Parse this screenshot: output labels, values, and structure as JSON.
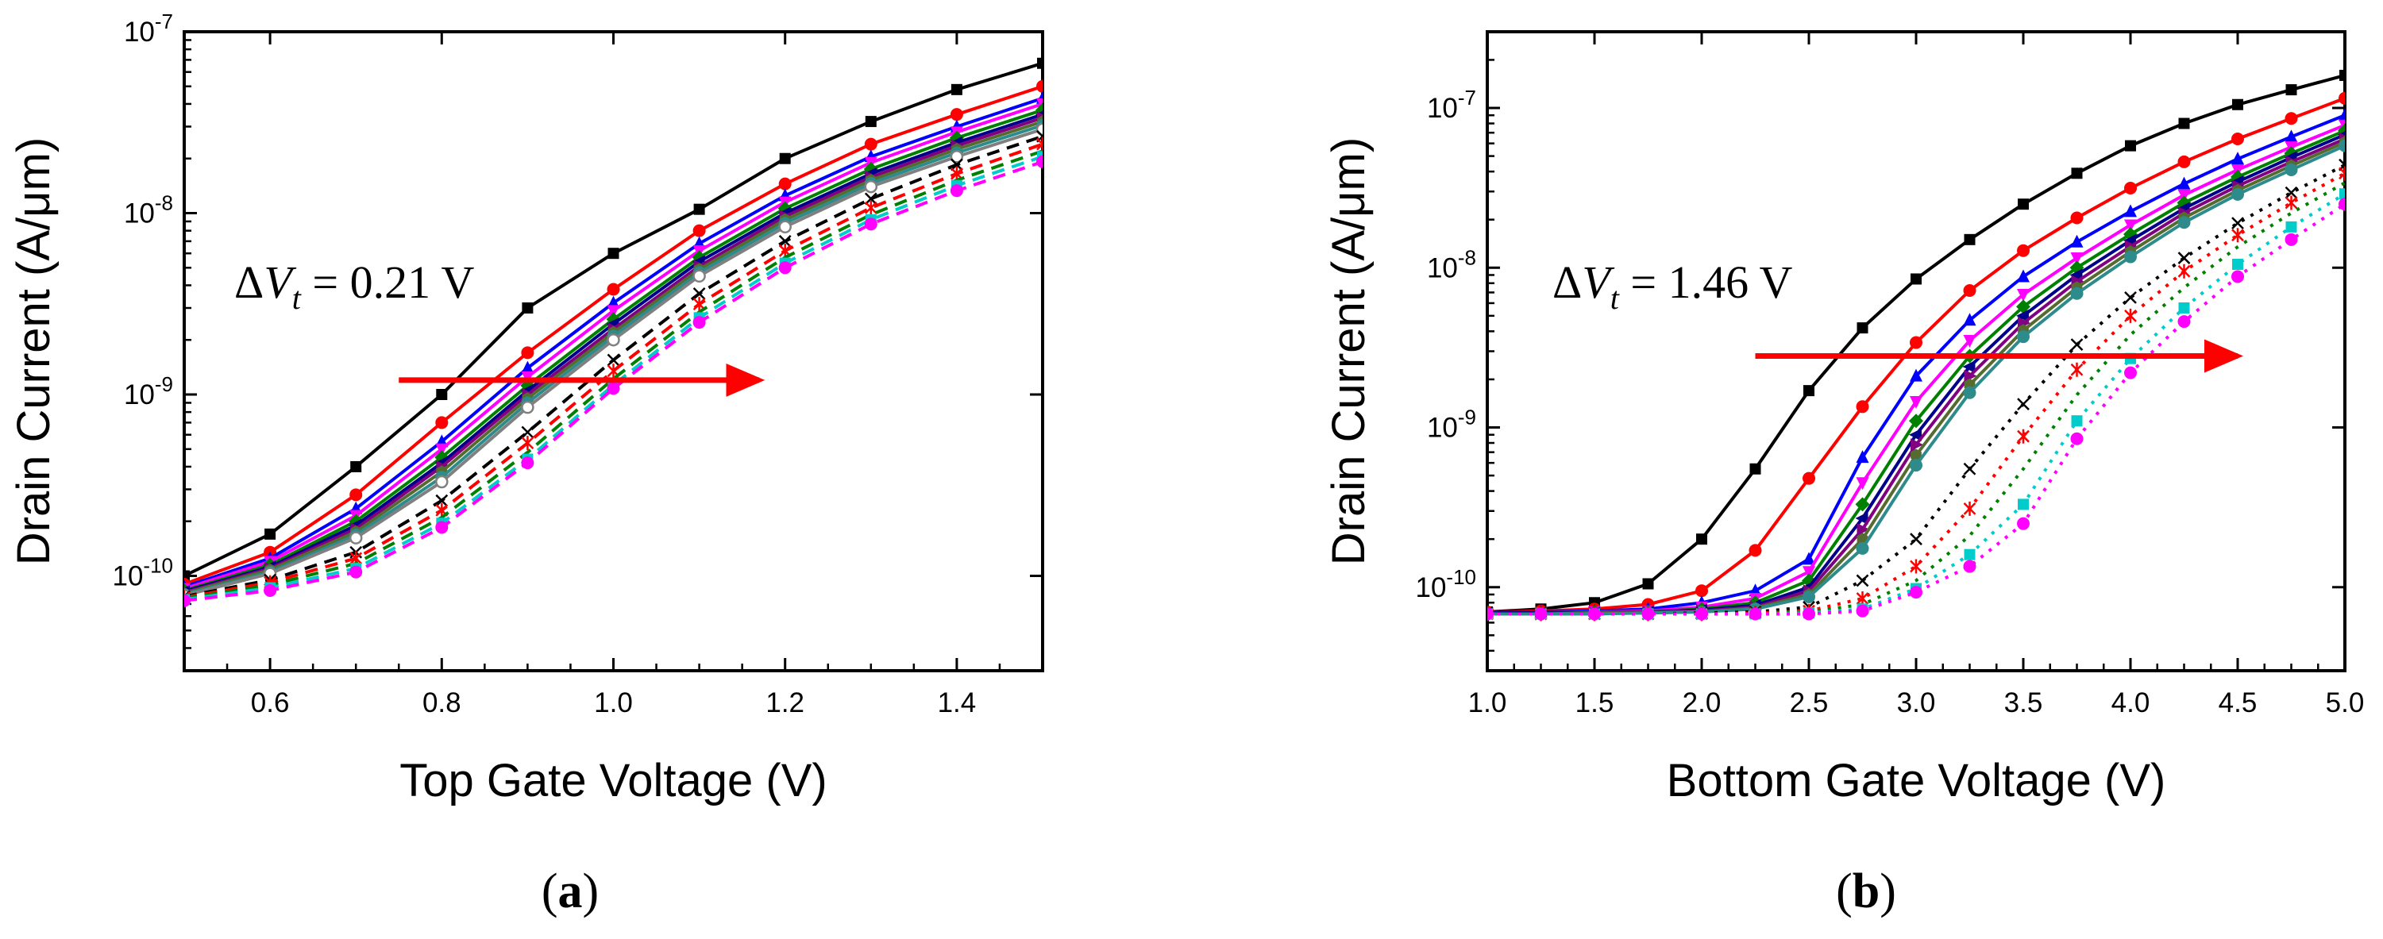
{
  "chart_data": [
    {
      "type": "line",
      "panel_label": "a",
      "xlabel": "Top Gate Voltage (V)",
      "ylabel": "Drain Current (A/μm)",
      "xlim": [
        0.5,
        1.5
      ],
      "ylim": [
        3e-11,
        1e-07
      ],
      "yscale": "log",
      "xticks": [
        "0.6",
        "0.8",
        "1.0",
        "1.2",
        "1.4"
      ],
      "yticks": [
        {
          "base": "10",
          "exp": "-10"
        },
        {
          "base": "10",
          "exp": "-9"
        },
        {
          "base": "10",
          "exp": "-8"
        },
        {
          "base": "10",
          "exp": "-7"
        }
      ],
      "annotation": {
        "delta": "Δ",
        "symbol": "V",
        "subscript": "t",
        "rest": " = 0.21 V"
      },
      "arrow": {
        "from_x": 0.75,
        "to_x": 1.17,
        "y": 1.2e-09,
        "color": "#ff0000"
      },
      "x": [
        0.5,
        0.6,
        0.7,
        0.8,
        0.9,
        1.0,
        1.1,
        1.2,
        1.3,
        1.4,
        1.5
      ],
      "series": [
        {
          "color": "#000000",
          "marker": "square",
          "style": "solid",
          "values": [
            1e-10,
            1.7e-10,
            4e-10,
            1e-09,
            3e-09,
            6e-09,
            1.05e-08,
            2e-08,
            3.2e-08,
            4.8e-08,
            6.7e-08
          ]
        },
        {
          "color": "#ff0000",
          "marker": "circle",
          "style": "solid",
          "values": [
            9e-11,
            1.35e-10,
            2.8e-10,
            7e-10,
            1.7e-09,
            3.8e-09,
            8e-09,
            1.45e-08,
            2.4e-08,
            3.5e-08,
            5e-08
          ]
        },
        {
          "color": "#0000ff",
          "marker": "triangle-up",
          "style": "solid",
          "values": [
            8.7e-11,
            1.25e-10,
            2.35e-10,
            5.5e-10,
            1.4e-09,
            3.2e-09,
            6.8e-09,
            1.25e-08,
            2.05e-08,
            3e-08,
            4.3e-08
          ]
        },
        {
          "color": "#ff00ff",
          "marker": "triangle-down",
          "style": "solid",
          "values": [
            8.5e-11,
            1.2e-10,
            2.15e-10,
            5e-10,
            1.25e-09,
            2.9e-09,
            6.2e-09,
            1.15e-08,
            1.9e-08,
            2.8e-08,
            4e-08
          ]
        },
        {
          "color": "#008000",
          "marker": "diamond",
          "style": "solid",
          "values": [
            8.3e-11,
            1.15e-10,
            2e-10,
            4.5e-10,
            1.12e-09,
            2.6e-09,
            5.7e-09,
            1.06e-08,
            1.75e-08,
            2.6e-08,
            3.7e-08
          ]
        },
        {
          "color": "#00008b",
          "marker": "triangle-left",
          "style": "solid",
          "values": [
            8.2e-11,
            1.12e-10,
            1.9e-10,
            4.2e-10,
            1.05e-09,
            2.45e-09,
            5.4e-09,
            1e-08,
            1.65e-08,
            2.45e-08,
            3.5e-08
          ]
        },
        {
          "color": "#800080",
          "marker": "triangle-right",
          "style": "solid",
          "values": [
            8.1e-11,
            1.1e-10,
            1.82e-10,
            4e-10,
            1e-09,
            2.3e-09,
            5.1e-09,
            9.6e-09,
            1.58e-08,
            2.35e-08,
            3.35e-08
          ]
        },
        {
          "color": "#556b2f",
          "marker": "hexagon",
          "style": "solid",
          "values": [
            8e-11,
            1.08e-10,
            1.75e-10,
            3.75e-10,
            9.5e-10,
            2.2e-09,
            4.9e-09,
            9.2e-09,
            1.52e-08,
            2.25e-08,
            3.2e-08
          ]
        },
        {
          "color": "#2e8b8b",
          "marker": "circle",
          "style": "solid",
          "values": [
            7.9e-11,
            1.05e-10,
            1.68e-10,
            3.5e-10,
            9e-10,
            2.1e-09,
            4.7e-09,
            8.8e-09,
            1.46e-08,
            2.15e-08,
            3.05e-08
          ]
        },
        {
          "color": "#808080",
          "marker": "circle-open",
          "style": "solid",
          "values": [
            7.8e-11,
            1.03e-10,
            1.62e-10,
            3.3e-10,
            8.5e-10,
            2e-09,
            4.5e-09,
            8.4e-09,
            1.4e-08,
            2.05e-08,
            2.9e-08
          ]
        },
        {
          "color": "#000000",
          "marker": "x",
          "style": "dashed",
          "values": [
            7.7e-11,
            9.5e-11,
            1.35e-10,
            2.6e-10,
            6.2e-10,
            1.55e-09,
            3.6e-09,
            7e-09,
            1.2e-08,
            1.85e-08,
            2.65e-08
          ]
        },
        {
          "color": "#ff0000",
          "marker": "star",
          "style": "dashed",
          "values": [
            7.6e-11,
            9.2e-11,
            1.25e-10,
            2.3e-10,
            5.4e-10,
            1.35e-09,
            3.15e-09,
            6.2e-09,
            1.07e-08,
            1.65e-08,
            2.4e-08
          ]
        },
        {
          "color": "#008000",
          "marker": "none",
          "style": "dashed",
          "values": [
            7.5e-11,
            8.9e-11,
            1.17e-10,
            2.1e-10,
            4.8e-10,
            1.22e-09,
            2.85e-09,
            5.7e-09,
            9.8e-09,
            1.52e-08,
            2.2e-08
          ]
        },
        {
          "color": "#00cccc",
          "marker": "square",
          "style": "dashed",
          "values": [
            7.4e-11,
            8.6e-11,
            1.1e-10,
            1.95e-10,
            4.4e-10,
            1.13e-09,
            2.65e-09,
            5.3e-09,
            9.2e-09,
            1.42e-08,
            2.05e-08
          ]
        },
        {
          "color": "#ff00ff",
          "marker": "circle",
          "style": "dashed",
          "values": [
            7.3e-11,
            8.3e-11,
            1.05e-10,
            1.85e-10,
            4.2e-10,
            1.08e-09,
            2.5e-09,
            5e-09,
            8.7e-09,
            1.33e-08,
            1.92e-08
          ]
        }
      ]
    },
    {
      "type": "line",
      "panel_label": "b",
      "xlabel": "Bottom Gate Voltage (V)",
      "ylabel": "Drain Current (A/μm)",
      "xlim": [
        1.0,
        5.0
      ],
      "ylim": [
        3e-11,
        3e-07
      ],
      "yscale": "log",
      "xticks": [
        "1.0",
        "1.5",
        "2.0",
        "2.5",
        "3.0",
        "3.5",
        "4.0",
        "4.5",
        "5.0"
      ],
      "yticks": [
        {
          "base": "10",
          "exp": "-10"
        },
        {
          "base": "10",
          "exp": "-9"
        },
        {
          "base": "10",
          "exp": "-8"
        },
        {
          "base": "10",
          "exp": "-7"
        }
      ],
      "annotation": {
        "delta": "Δ",
        "symbol": "V",
        "subscript": "t",
        "rest": " = 1.46 V"
      },
      "arrow": {
        "from_x": 2.25,
        "to_x": 4.5,
        "y": 2.8e-09,
        "color": "#ff0000"
      },
      "x": [
        1.0,
        1.25,
        1.5,
        1.75,
        2.0,
        2.25,
        2.5,
        2.75,
        3.0,
        3.25,
        3.5,
        3.75,
        4.0,
        4.25,
        4.5,
        4.75,
        5.0
      ],
      "series": [
        {
          "color": "#000000",
          "marker": "square",
          "style": "solid",
          "values": [
            7e-11,
            7.3e-11,
            8e-11,
            1.05e-10,
            2e-10,
            5.5e-10,
            1.7e-09,
            4.2e-09,
            8.5e-09,
            1.5e-08,
            2.5e-08,
            3.9e-08,
            5.8e-08,
            8e-08,
            1.05e-07,
            1.3e-07,
            1.6e-07
          ]
        },
        {
          "color": "#ff0000",
          "marker": "circle",
          "style": "solid",
          "values": [
            7e-11,
            7.1e-11,
            7.3e-11,
            7.8e-11,
            9.5e-11,
            1.7e-10,
            4.8e-10,
            1.35e-09,
            3.4e-09,
            7.2e-09,
            1.28e-08,
            2.05e-08,
            3.15e-08,
            4.6e-08,
            6.4e-08,
            8.6e-08,
            1.15e-07
          ]
        },
        {
          "color": "#0000ff",
          "marker": "triangle-up",
          "style": "solid",
          "values": [
            7e-11,
            7e-11,
            7.1e-11,
            7.3e-11,
            8e-11,
            9.5e-11,
            1.5e-10,
            6.5e-10,
            2.1e-09,
            4.7e-09,
            8.8e-09,
            1.45e-08,
            2.25e-08,
            3.35e-08,
            4.8e-08,
            6.6e-08,
            9e-08
          ]
        },
        {
          "color": "#ff00ff",
          "marker": "triangle-down",
          "style": "solid",
          "values": [
            6.9e-11,
            6.9e-11,
            7e-11,
            7.1e-11,
            7.5e-11,
            8.5e-11,
            1.25e-10,
            4.5e-10,
            1.45e-09,
            3.5e-09,
            6.8e-09,
            1.15e-08,
            1.85e-08,
            2.85e-08,
            4.1e-08,
            5.7e-08,
            7.8e-08
          ]
        },
        {
          "color": "#008000",
          "marker": "diamond",
          "style": "solid",
          "values": [
            6.9e-11,
            6.9e-11,
            7e-11,
            7e-11,
            7.3e-11,
            8e-11,
            1.1e-10,
            3.3e-10,
            1.1e-09,
            2.8e-09,
            5.7e-09,
            1e-08,
            1.62e-08,
            2.55e-08,
            3.7e-08,
            5.2e-08,
            7.2e-08
          ]
        },
        {
          "color": "#00008b",
          "marker": "triangle-left",
          "style": "solid",
          "values": [
            6.9e-11,
            6.9e-11,
            6.9e-11,
            7e-11,
            7.2e-11,
            7.7e-11,
            1e-10,
            2.7e-10,
            9e-10,
            2.4e-09,
            5e-09,
            9e-09,
            1.48e-08,
            2.35e-08,
            3.45e-08,
            4.9e-08,
            6.8e-08
          ]
        },
        {
          "color": "#800080",
          "marker": "triangle-right",
          "style": "solid",
          "values": [
            6.8e-11,
            6.8e-11,
            6.9e-11,
            7e-11,
            7.1e-11,
            7.5e-11,
            9.5e-11,
            2.3e-10,
            7.8e-10,
            2.1e-09,
            4.5e-09,
            8.2e-09,
            1.36e-08,
            2.2e-08,
            3.25e-08,
            4.6e-08,
            6.4e-08
          ]
        },
        {
          "color": "#556b2f",
          "marker": "hexagon",
          "style": "solid",
          "values": [
            6.8e-11,
            6.8e-11,
            6.9e-11,
            6.9e-11,
            7e-11,
            7.4e-11,
            9e-11,
            2e-10,
            6.7e-10,
            1.85e-09,
            4.05e-09,
            7.5e-09,
            1.26e-08,
            2.05e-08,
            3.05e-08,
            4.35e-08,
            6.1e-08
          ]
        },
        {
          "color": "#2e8b8b",
          "marker": "circle",
          "style": "solid",
          "values": [
            6.8e-11,
            6.8e-11,
            6.8e-11,
            6.9e-11,
            7e-11,
            7.3e-11,
            8.7e-11,
            1.75e-10,
            5.8e-10,
            1.65e-09,
            3.7e-09,
            6.9e-09,
            1.17e-08,
            1.92e-08,
            2.88e-08,
            4.1e-08,
            5.8e-08
          ]
        },
        {
          "color": "#000000",
          "marker": "x",
          "style": "dotted",
          "values": [
            6.8e-11,
            6.8e-11,
            6.8e-11,
            6.8e-11,
            6.9e-11,
            7e-11,
            7.5e-11,
            1.1e-10,
            2e-10,
            5.5e-10,
            1.4e-09,
            3.3e-09,
            6.5e-09,
            1.15e-08,
            1.9e-08,
            2.95e-08,
            4.4e-08
          ]
        },
        {
          "color": "#ff0000",
          "marker": "star",
          "style": "dotted",
          "values": [
            6.8e-11,
            6.8e-11,
            6.8e-11,
            6.8e-11,
            6.8e-11,
            6.9e-11,
            7.1e-11,
            8.5e-11,
            1.35e-10,
            3.1e-10,
            8.8e-10,
            2.3e-09,
            5e-09,
            9.5e-09,
            1.6e-08,
            2.55e-08,
            3.9e-08
          ]
        },
        {
          "color": "#008000",
          "marker": "none",
          "style": "dotted",
          "values": [
            6.8e-11,
            6.8e-11,
            6.8e-11,
            6.8e-11,
            6.8e-11,
            6.8e-11,
            7e-11,
            7.8e-11,
            1.1e-10,
            2.1e-10,
            5.5e-10,
            1.6e-09,
            3.8e-09,
            7.5e-09,
            1.35e-08,
            2.2e-08,
            3.4e-08
          ]
        },
        {
          "color": "#00cccc",
          "marker": "square",
          "style": "dotted",
          "values": [
            6.8e-11,
            6.8e-11,
            6.8e-11,
            6.8e-11,
            6.8e-11,
            6.8e-11,
            6.9e-11,
            7.3e-11,
            9.8e-11,
            1.6e-10,
            3.3e-10,
            1.1e-09,
            2.7e-09,
            5.6e-09,
            1.05e-08,
            1.8e-08,
            2.9e-08
          ]
        },
        {
          "color": "#ff00ff",
          "marker": "circle",
          "style": "dotted",
          "values": [
            6.8e-11,
            6.8e-11,
            6.8e-11,
            6.8e-11,
            6.8e-11,
            6.8e-11,
            6.8e-11,
            7.1e-11,
            9.3e-11,
            1.35e-10,
            2.5e-10,
            8.5e-10,
            2.2e-09,
            4.6e-09,
            8.8e-09,
            1.5e-08,
            2.5e-08
          ]
        }
      ]
    }
  ]
}
